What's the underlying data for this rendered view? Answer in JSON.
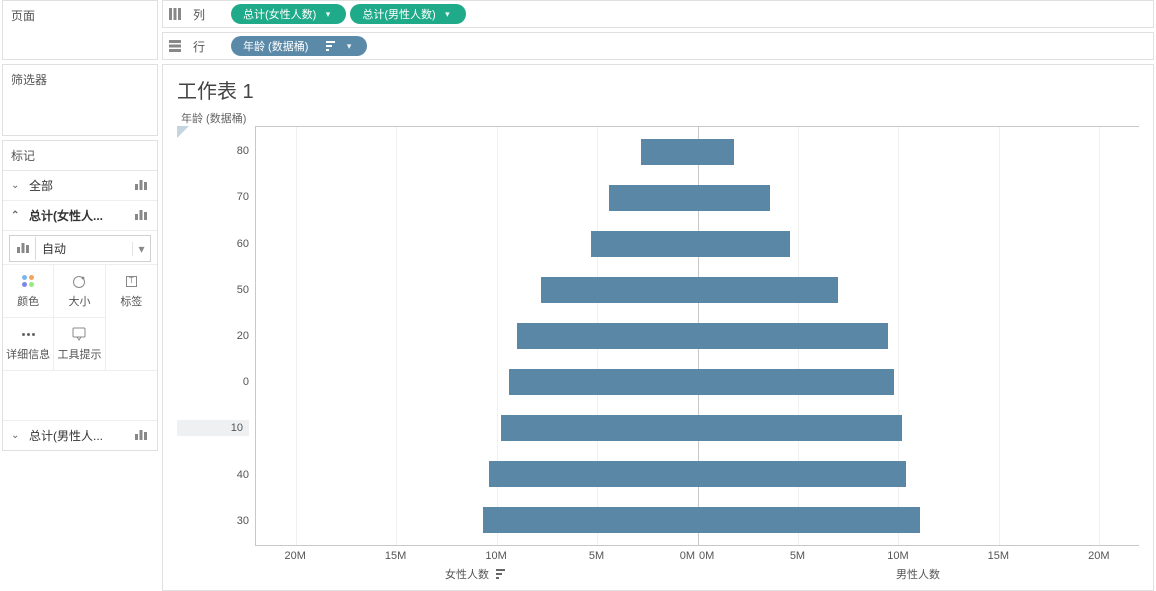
{
  "left": {
    "pages_label": "页面",
    "filters_label": "筛选器",
    "marks_label": "标记",
    "rows": {
      "all": {
        "label": "全部",
        "expanded": false
      },
      "fsum": {
        "label": "总计(女性人...",
        "expanded": true
      },
      "msum": {
        "label": "总计(男性人...",
        "expanded": false
      }
    },
    "dropdown": {
      "label": "自动"
    },
    "cells": {
      "color": "颜色",
      "size": "大小",
      "label": "标签",
      "detail": "详细信息",
      "tooltip": "工具提示"
    }
  },
  "shelves": {
    "columns": {
      "name": "列",
      "pills": [
        "总计(女性人数)",
        "总计(男性人数)"
      ]
    },
    "rows": {
      "name": "行",
      "pills": [
        "年龄 (数据桶)"
      ]
    }
  },
  "viz": {
    "title": "工作表 1",
    "y_axis_label": "年龄 (数据桶)",
    "x_left_label": "女性人数",
    "x_right_label": "男性人数",
    "bar_color": "#5b87a6",
    "x_max": 22,
    "categories": [
      {
        "label": "80",
        "female": 2.8,
        "male": 1.8
      },
      {
        "label": "70",
        "female": 4.4,
        "male": 3.6
      },
      {
        "label": "60",
        "female": 5.3,
        "male": 4.6
      },
      {
        "label": "50",
        "female": 7.8,
        "male": 7.0
      },
      {
        "label": "20",
        "female": 9.0,
        "male": 9.5
      },
      {
        "label": "0",
        "female": 9.4,
        "male": 9.8
      },
      {
        "label": "10",
        "female": 9.8,
        "male": 10.2,
        "active": true
      },
      {
        "label": "40",
        "female": 10.4,
        "male": 10.4
      },
      {
        "label": "30",
        "female": 10.7,
        "male": 11.1
      }
    ],
    "x_ticks_left": [
      "20M",
      "15M",
      "10M",
      "5M",
      "0M"
    ],
    "x_ticks_right": [
      "0M",
      "5M",
      "10M",
      "15M",
      "20M"
    ]
  }
}
